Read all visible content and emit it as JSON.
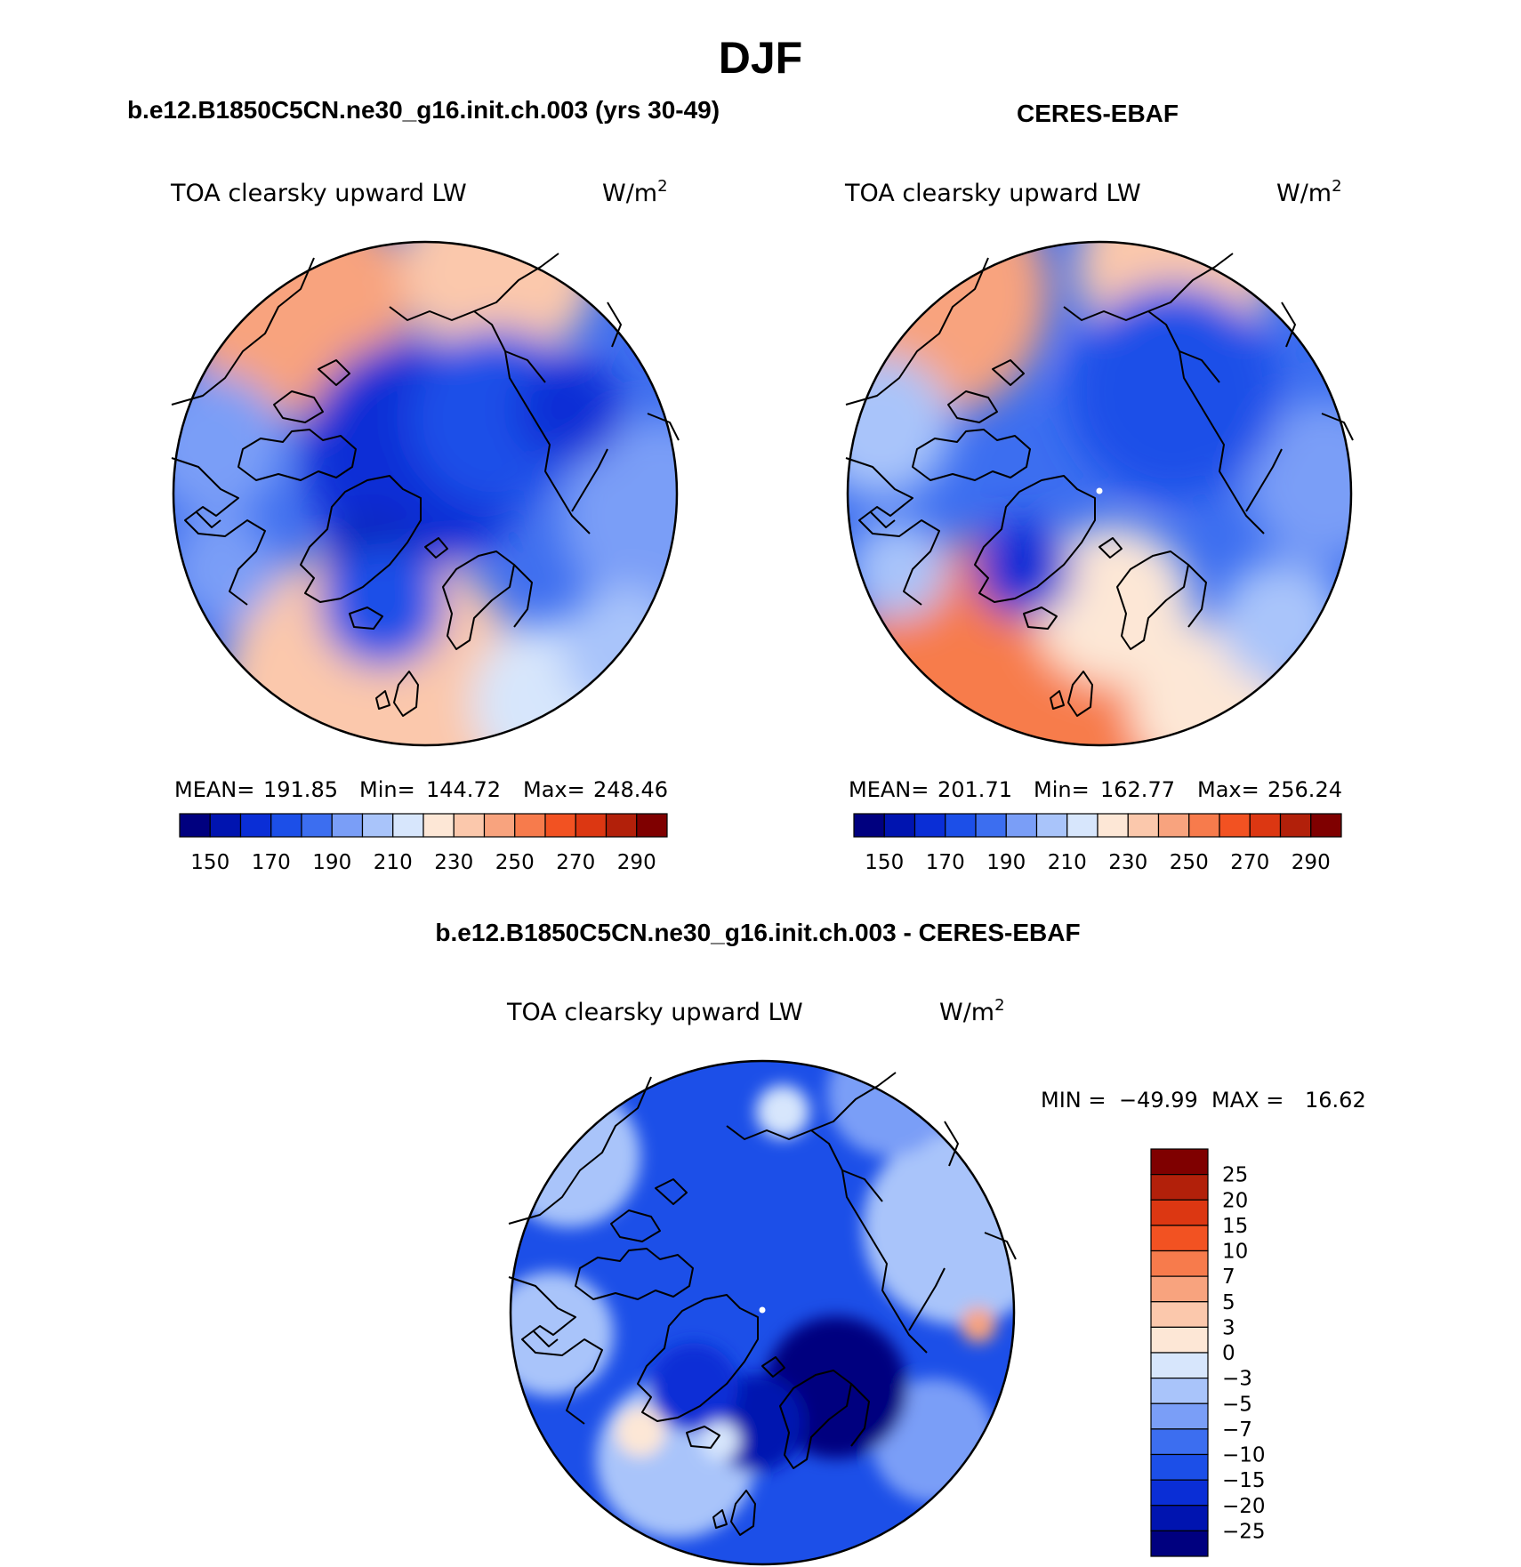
{
  "figure": {
    "season": "DJF",
    "panel_titles": {
      "model": "b.e12.B1850C5CN.ne30_g16.init.ch.003 (yrs 30-49)",
      "obs": "CERES-EBAF",
      "diff": "b.e12.B1850C5CN.ne30_g16.init.ch.003 - CERES-EBAF"
    },
    "variable": "TOA clearsky upward LW",
    "units_base": "W/m",
    "units_exp": "2"
  },
  "chart_data": [
    {
      "type": "heatmap",
      "projection": "north polar stereographic",
      "title": "b.e12.B1850C5CN.ne30_g16.init.ch.003 (yrs 30-49)",
      "variable": "TOA clearsky upward LW",
      "units": "W/m2",
      "stats": {
        "mean_label": "MEAN=",
        "mean": "191.85",
        "min_label": "Min=",
        "min": "144.72",
        "max_label": "Max=",
        "max": "248.46"
      },
      "levels": [
        150,
        160,
        170,
        180,
        190,
        200,
        210,
        220,
        230,
        240,
        250,
        260,
        270,
        280,
        290
      ],
      "tick_labels": [
        "150",
        "170",
        "190",
        "210",
        "230",
        "250",
        "270",
        "290"
      ],
      "colors": [
        "#00007f",
        "#0014b0",
        "#0a2ed6",
        "#1c4fe8",
        "#3c6ef0",
        "#7a9ef7",
        "#a9c4fa",
        "#d7e6fc",
        "#fde7d6",
        "#fbc8ac",
        "#f8a37e",
        "#f77b4c",
        "#f25222",
        "#dc3712",
        "#b2200a",
        "#7f0000"
      ],
      "shown_range": [
        144.72,
        248.46
      ],
      "pattern": "low (dark blue) over central Arctic and Greenland, warm (orange) over N Atlantic and N Pacific"
    },
    {
      "type": "heatmap",
      "projection": "north polar stereographic",
      "title": "CERES-EBAF",
      "variable": "TOA clearsky upward LW",
      "units": "W/m2",
      "stats": {
        "mean_label": "MEAN=",
        "mean": "201.71",
        "min_label": "Min=",
        "min": "162.77",
        "max_label": "Max=",
        "max": "256.24"
      },
      "levels": [
        150,
        160,
        170,
        180,
        190,
        200,
        210,
        220,
        230,
        240,
        250,
        260,
        270,
        280,
        290
      ],
      "tick_labels": [
        "150",
        "170",
        "190",
        "210",
        "230",
        "250",
        "270",
        "290"
      ],
      "colors": [
        "#00007f",
        "#0014b0",
        "#0a2ed6",
        "#1c4fe8",
        "#3c6ef0",
        "#7a9ef7",
        "#a9c4fa",
        "#d7e6fc",
        "#fde7d6",
        "#fbc8ac",
        "#f8a37e",
        "#f77b4c",
        "#f25222",
        "#dc3712",
        "#b2200a",
        "#7f0000"
      ],
      "shown_range": [
        162.77,
        256.24
      ],
      "pattern": "medium blue over Arctic Ocean, orange-red over N Atlantic and N Pacific"
    },
    {
      "type": "heatmap",
      "projection": "north polar stereographic",
      "title": "b.e12.B1850C5CN.ne30_g16.init.ch.003 - CERES-EBAF",
      "variable": "TOA clearsky upward LW",
      "units": "W/m2",
      "stats": {
        "min_label": "MIN =",
        "min": "−49.99",
        "max_label": "MAX =",
        "max": "16.62"
      },
      "levels": [
        -25,
        -20,
        -15,
        -10,
        -7,
        -5,
        -3,
        0,
        3,
        5,
        7,
        10,
        15,
        20,
        25
      ],
      "tick_labels": [
        "25",
        "20",
        "15",
        "10",
        "7",
        "5",
        "3",
        "0",
        "−3",
        "−5",
        "−7",
        "−10",
        "−15",
        "−20",
        "−25"
      ],
      "colors": [
        "#00007f",
        "#0014b0",
        "#0a2ed6",
        "#1c4fe8",
        "#3c6ef0",
        "#7a9ef7",
        "#a9c4fa",
        "#d7e6fc",
        "#fde7d6",
        "#fbc8ac",
        "#f8a37e",
        "#f77b4c",
        "#f25222",
        "#dc3712",
        "#b2200a",
        "#7f0000"
      ],
      "shown_range": [
        -49.99,
        16.62
      ],
      "pattern": "negative (blue) almost everywhere, strongest over Greenland Sea / Barents; small positive spots"
    }
  ]
}
